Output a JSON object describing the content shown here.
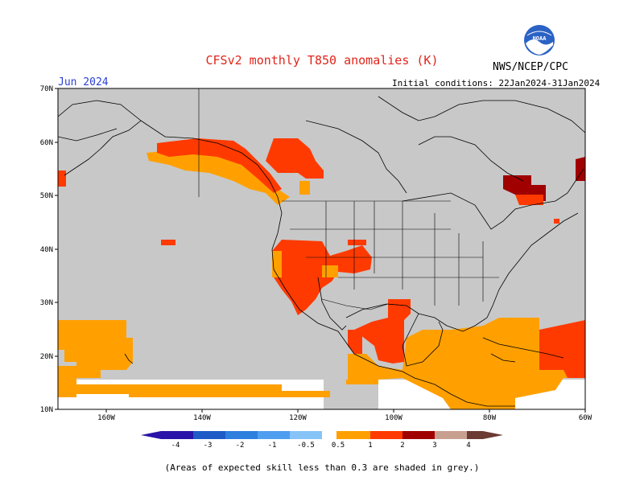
{
  "title": "CFSv2 monthly T850 anomalies (K)",
  "organization": "NWS/NCEP/CPC",
  "logo_text": "NOAA",
  "valid_month": "Jun 2024",
  "initial_conditions": "Initial conditions: 22Jan2024-31Jan2024",
  "caption": "(Areas of expected skill less than 0.3 are shaded in grey.)",
  "map": {
    "lat_labels": [
      "70N",
      "60N",
      "50N",
      "40N",
      "30N",
      "20N",
      "10N"
    ],
    "lon_labels": [
      "160W",
      "140W",
      "120W",
      "100W",
      "80W",
      "60W"
    ]
  },
  "colorbar": {
    "labels": [
      "-4",
      "-3",
      "-2",
      "-1",
      "-0.5",
      "0.5",
      "1",
      "2",
      "3",
      "4"
    ],
    "colors": [
      "#2a13a8",
      "#1e5bc6",
      "#2e7fde",
      "#4f9ef0",
      "#86c3f7",
      "#ffffff",
      "#ffa000",
      "#ff3a00",
      "#ff2200",
      "#a00000",
      "#c8a090",
      "#6b3a32"
    ]
  },
  "colors": {
    "skill_grey": "#c8c8c8",
    "anom_orange": "#ffa000",
    "anom_red": "#ff3a00",
    "anom_darkred": "#a00000"
  }
}
